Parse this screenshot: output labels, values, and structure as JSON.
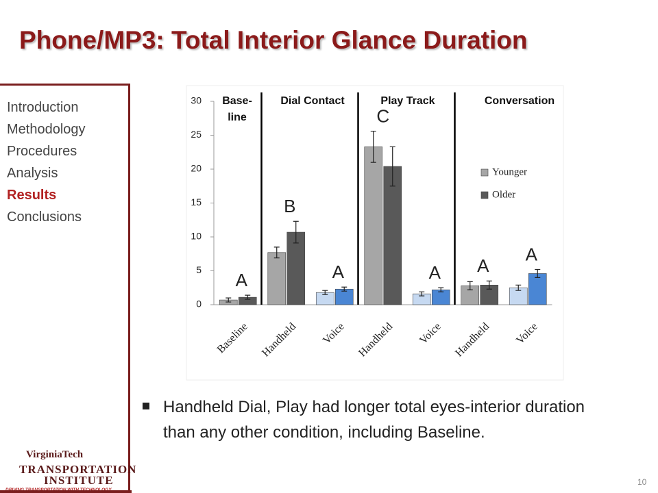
{
  "slide": {
    "title": "Phone/MP3: Total Interior Glance Duration",
    "nav": [
      "Introduction",
      "Methodology",
      "Procedures",
      "Analysis",
      "Results",
      "Conclusions"
    ],
    "current_nav": 4,
    "bullet": "Handheld Dial, Play had longer total eyes-interior duration than any other condition, including Baseline.",
    "page_number": "10",
    "logo": [
      "VirginiaTech",
      "TRANSPORTATION",
      "INSTITUTE",
      "DRIVING TRANSPORTATION WITH TECHNOLOGY"
    ]
  },
  "chart_data": {
    "type": "bar",
    "categories": [
      "Baseline",
      "Handheld",
      "Voice",
      "Handheld",
      "Voice",
      "Handheld",
      "Voice"
    ],
    "series": [
      {
        "name": "Younger",
        "color": "#a6a6a6",
        "point_colors": [
          "#a6a6a6",
          "#a6a6a6",
          "#c6d9f1",
          "#a6a6a6",
          "#c6d9f1",
          "#a6a6a6",
          "#c6d9f1"
        ],
        "values": [
          0.7,
          7.7,
          1.8,
          23.3,
          1.6,
          2.8,
          2.5
        ],
        "errors": [
          0.3,
          0.8,
          0.3,
          2.3,
          0.3,
          0.6,
          0.4
        ]
      },
      {
        "name": "Older",
        "color": "#595959",
        "point_colors": [
          "#595959",
          "#595959",
          "#4a86d4",
          "#595959",
          "#4a86d4",
          "#595959",
          "#4a86d4"
        ],
        "values": [
          1.1,
          10.7,
          2.3,
          20.4,
          2.2,
          2.9,
          4.6
        ],
        "errors": [
          0.3,
          1.6,
          0.3,
          2.9,
          0.3,
          0.6,
          0.6
        ]
      }
    ],
    "letters": [
      "A",
      "B",
      "A",
      "C",
      "A",
      "A",
      "A"
    ],
    "sections": [
      [
        "Base-",
        "line"
      ],
      [
        "Dial Contact"
      ],
      [
        "Play Track"
      ],
      [
        "Conversation"
      ]
    ],
    "ylim": [
      0,
      30
    ],
    "yticks": [
      0,
      5,
      10,
      15,
      20,
      25,
      30
    ],
    "grid": false
  }
}
